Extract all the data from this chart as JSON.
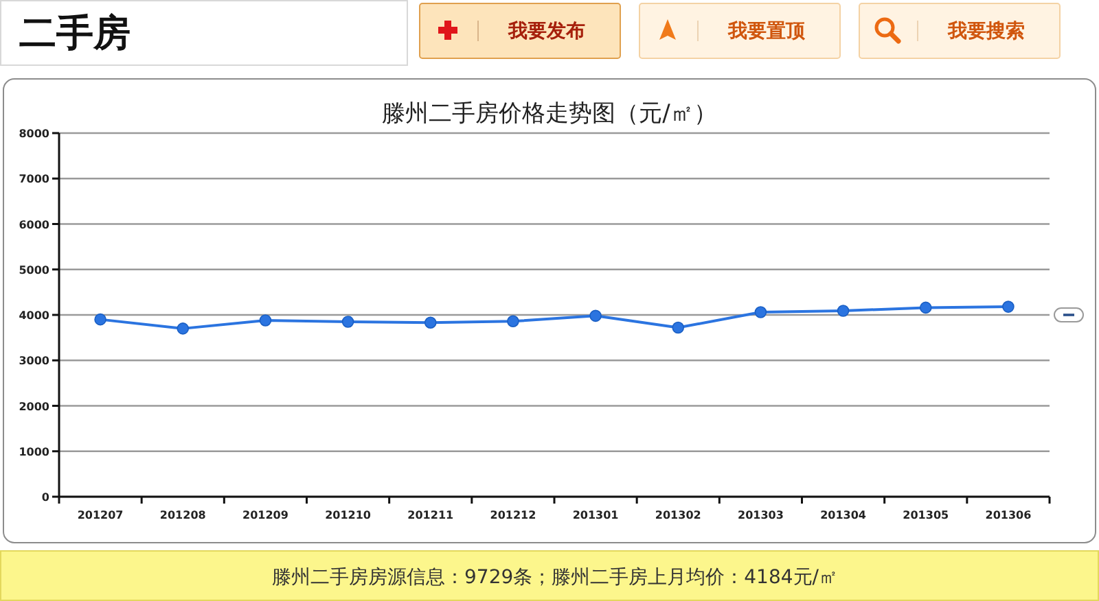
{
  "chart_data": {
    "type": "line",
    "title": "滕州二手房价格走势图（元/㎡）",
    "categories": [
      "201207",
      "201208",
      "201209",
      "201210",
      "201211",
      "201212",
      "201301",
      "201302",
      "201303",
      "201304",
      "201305",
      "201306"
    ],
    "series": [
      {
        "color": "#2b74e0",
        "values": [
          3900,
          3700,
          3880,
          3850,
          3830,
          3860,
          3980,
          3720,
          4060,
          4090,
          4160,
          4180
        ]
      }
    ],
    "ylim": [
      0,
      8000
    ],
    "yticks": [
      0,
      1000,
      2000,
      3000,
      4000,
      5000,
      6000,
      7000,
      8000
    ],
    "grid": "y",
    "marker": "circle",
    "line_style": "solid",
    "annotations": [
      "二手房",
      "我要发布",
      "我要置顶",
      "我要搜索",
      "滕州二手房房源信息：9729条；滕州二手房上月均价：4184元/㎡"
    ]
  }
}
